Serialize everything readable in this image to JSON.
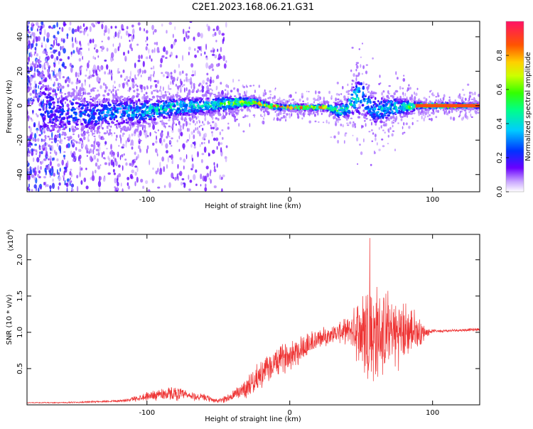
{
  "title": "C2E1.2023.168.06.21.G31",
  "chart_data": [
    {
      "type": "heatmap",
      "xlabel": "Height of straight line (km)",
      "ylabel": "Frequency (Hz)",
      "xlim": [
        -184,
        133
      ],
      "ylim": [
        -50,
        49
      ],
      "x_ticks": [
        -100,
        0,
        100
      ],
      "x_tick_labels": [
        "-100",
        "0",
        "100"
      ],
      "y_ticks": [
        -40,
        -20,
        0,
        20,
        40
      ],
      "y_tick_labels": [
        "-40",
        "-20",
        "0",
        "20",
        "40"
      ],
      "grid": false,
      "colorbar": {
        "label": "Normalized spectral amplitude",
        "range": [
          0,
          1
        ],
        "ticks": [
          0,
          0.2,
          0.4,
          0.6,
          0.8
        ],
        "tick_labels": [
          "0.0",
          "0.2",
          "0.4",
          "0.6",
          "0.8"
        ]
      },
      "center_track": {
        "heights": [
          -184,
          -160,
          -140,
          -120,
          -100,
          -80,
          -60,
          -45,
          -35,
          -25,
          -15,
          -5,
          5,
          15,
          25,
          30,
          35,
          40,
          45,
          50,
          55,
          60,
          70,
          80,
          90,
          100,
          110,
          120,
          133
        ],
        "frequency": [
          0,
          -4,
          -5,
          -4,
          -3,
          -1,
          0,
          1,
          2,
          2,
          0,
          -1,
          -1,
          -1,
          -1,
          -2,
          -3,
          -2,
          4,
          6,
          0,
          -3,
          -1,
          -1,
          0,
          0,
          0,
          0,
          0
        ],
        "spread": [
          20,
          8,
          7,
          6,
          5,
          4,
          3,
          3,
          2,
          1.5,
          1,
          1,
          1,
          1,
          1,
          2,
          3,
          3,
          6,
          8,
          5,
          6,
          4,
          3,
          1,
          1,
          1,
          1,
          1
        ],
        "amplitude": [
          0.2,
          0.25,
          0.3,
          0.35,
          0.4,
          0.45,
          0.45,
          0.55,
          0.7,
          0.8,
          0.85,
          0.85,
          0.85,
          0.85,
          0.85,
          0.6,
          0.55,
          0.5,
          0.45,
          0.4,
          0.4,
          0.35,
          0.45,
          0.5,
          0.8,
          0.85,
          0.85,
          0.7,
          0.55
        ]
      }
    },
    {
      "type": "line",
      "xlabel": "Height of straight line (km)",
      "ylabel": "SNR (10 * v/v)",
      "y_scale_label": "(x10",
      "y_scale_exp": "4",
      "y_scale_close": ")",
      "xlim": [
        -184,
        133
      ],
      "ylim": [
        0,
        2.35
      ],
      "x_ticks": [
        -100,
        0,
        100
      ],
      "x_tick_labels": [
        "-100",
        "0",
        "100"
      ],
      "y_ticks": [
        0.5,
        1.0,
        1.5,
        2.0
      ],
      "y_tick_labels": [
        "0.5",
        "1.0",
        "1.5",
        "2.0"
      ],
      "grid": false,
      "color": "#ee3333",
      "series": [
        {
          "x": [
            -184,
            -160,
            -140,
            -115,
            -100,
            -90,
            -80,
            -70,
            -60,
            -50,
            -40,
            -30,
            -20,
            -10,
            0,
            10,
            20,
            28,
            35,
            40,
            45,
            50,
            55,
            60,
            65,
            70,
            75,
            80,
            85,
            90,
            95,
            100,
            110,
            120,
            133
          ],
          "mean": [
            0.03,
            0.03,
            0.04,
            0.06,
            0.12,
            0.15,
            0.16,
            0.12,
            0.1,
            0.05,
            0.12,
            0.25,
            0.42,
            0.58,
            0.7,
            0.8,
            0.9,
            0.97,
            1.0,
            1.02,
            1.05,
            1.0,
            1.0,
            0.95,
            1.0,
            1.0,
            0.98,
            1.0,
            1.02,
            1.0,
            1.0,
            1.02,
            1.02,
            1.03,
            1.04
          ],
          "amplitude": [
            0.005,
            0.008,
            0.012,
            0.02,
            0.06,
            0.09,
            0.1,
            0.07,
            0.05,
            0.03,
            0.08,
            0.15,
            0.2,
            0.2,
            0.22,
            0.22,
            0.15,
            0.12,
            0.15,
            0.18,
            0.3,
            0.65,
            0.85,
            0.75,
            0.62,
            0.55,
            0.5,
            0.45,
            0.35,
            0.25,
            0.08,
            0.02,
            0.02,
            0.02,
            0.02
          ],
          "peak": {
            "x": 56,
            "y": 2.3
          }
        }
      ]
    }
  ]
}
